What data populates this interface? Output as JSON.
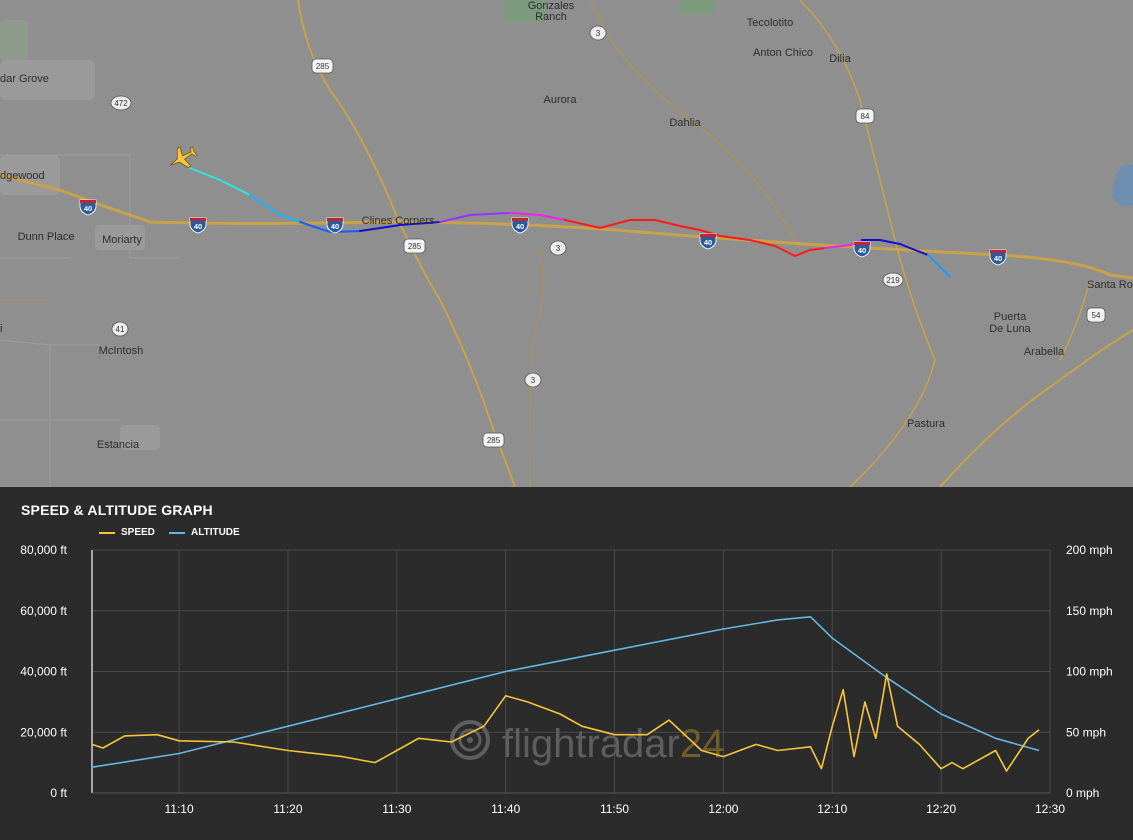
{
  "map": {
    "towns": [
      {
        "id": "gonzales-ranch",
        "lines": [
          "Gonzales",
          "Ranch"
        ]
      },
      {
        "id": "tecolotito",
        "lines": [
          "Tecolotito"
        ]
      },
      {
        "id": "anton-chico",
        "lines": [
          "Anton Chico"
        ]
      },
      {
        "id": "dilia",
        "lines": [
          "Dilia"
        ]
      },
      {
        "id": "cedar-grove",
        "lines": [
          "dar Grove"
        ]
      },
      {
        "id": "aurora",
        "lines": [
          "Aurora"
        ]
      },
      {
        "id": "dahlia",
        "lines": [
          "Dahlia"
        ]
      },
      {
        "id": "edgewood",
        "lines": [
          "dgewood"
        ]
      },
      {
        "id": "clines-corners",
        "lines": [
          "Clines Corners"
        ]
      },
      {
        "id": "dunn-place",
        "lines": [
          "Dunn Place"
        ]
      },
      {
        "id": "moriarty",
        "lines": [
          "Moriarty"
        ]
      },
      {
        "id": "santa-rosa",
        "lines": [
          "Santa Ro"
        ]
      },
      {
        "id": "puerta-de-luna",
        "lines": [
          "Puerta",
          "De Luna"
        ]
      },
      {
        "id": "arabella",
        "lines": [
          "Arabella"
        ]
      },
      {
        "id": "mcintosh",
        "lines": [
          "McIntosh"
        ]
      },
      {
        "id": "pastura",
        "lines": [
          "Pastura"
        ]
      },
      {
        "id": "estancia",
        "lines": [
          "Estancia"
        ]
      }
    ],
    "shields": {
      "us285_a": "285",
      "nm3_a": "3",
      "us84": "84",
      "nm472": "472",
      "i40_a": "40",
      "i40_b": "40",
      "i40_c": "40",
      "i40_d": "40",
      "i40_e": "40",
      "i40_f": "40",
      "i40_g": "40",
      "us285_b": "285",
      "nm3_b": "3",
      "nm219": "219",
      "us54": "54",
      "nm41": "41",
      "nm3_c": "3",
      "us285_c": "285"
    },
    "aircraft_icon": "airplane-icon",
    "track_colors": [
      "#2ee6e0",
      "#1ab2ff",
      "#1a5cff",
      "#1010cc",
      "#9933ff",
      "#ee22ee",
      "#ff1a1a",
      "#ff1a1a",
      "#ee22ee",
      "#1010cc",
      "#1a9cff"
    ]
  },
  "graph": {
    "title": "SPEED & ALTITUDE GRAPH",
    "legend": {
      "speed": "SPEED",
      "altitude": "ALTITUDE"
    },
    "watermark": {
      "text1": "flightradar",
      "text2": "24"
    },
    "colors": {
      "speed": "#f7c63a",
      "altitude": "#63b8e6",
      "grid": "#4a4a4a"
    }
  },
  "chart_data": {
    "type": "line",
    "title": "SPEED & ALTITUDE GRAPH",
    "legend": "top-left",
    "grid": true,
    "x_ticks": [
      "11:10",
      "11:20",
      "11:30",
      "11:40",
      "11:50",
      "12:00",
      "12:10",
      "12:20",
      "12:30"
    ],
    "x_range": [
      "11:02",
      "12:30"
    ],
    "y_left": {
      "ticks": [
        "0 ft",
        "20,000 ft",
        "40,000 ft",
        "60,000 ft",
        "80,000 ft"
      ],
      "range": [
        0,
        80000
      ]
    },
    "y_right": {
      "ticks": [
        "0 mph",
        "50 mph",
        "100 mph",
        "150 mph",
        "200 mph"
      ],
      "range": [
        0,
        200
      ]
    },
    "series": [
      {
        "name": "ALTITUDE",
        "axis": "left",
        "x": [
          "11:02",
          "11:10",
          "11:20",
          "11:30",
          "11:40",
          "11:50",
          "12:00",
          "12:05",
          "12:08",
          "12:10",
          "12:15",
          "12:20",
          "12:25",
          "12:29"
        ],
        "values": [
          8500,
          13000,
          22000,
          31000,
          40000,
          47000,
          54000,
          57000,
          58000,
          51000,
          38000,
          26000,
          18000,
          14000
        ]
      },
      {
        "name": "SPEED",
        "axis": "right",
        "x": [
          "11:02",
          "11:03",
          "11:05",
          "11:08",
          "11:10",
          "11:15",
          "11:20",
          "11:25",
          "11:28",
          "11:30",
          "11:32",
          "11:35",
          "11:38",
          "11:40",
          "11:42",
          "11:45",
          "11:47",
          "11:50",
          "11:53",
          "11:55",
          "11:58",
          "12:00",
          "12:03",
          "12:05",
          "12:08",
          "12:09",
          "12:10",
          "12:11",
          "12:12",
          "12:13",
          "12:14",
          "12:15",
          "12:16",
          "12:18",
          "12:20",
          "12:21",
          "12:22",
          "12:25",
          "12:26",
          "12:28",
          "12:29"
        ],
        "values": [
          40,
          37,
          47,
          48,
          43,
          42,
          35,
          30,
          25,
          35,
          45,
          42,
          55,
          80,
          75,
          65,
          55,
          48,
          48,
          60,
          35,
          30,
          40,
          35,
          38,
          20,
          55,
          85,
          30,
          75,
          45,
          98,
          55,
          40,
          20,
          25,
          20,
          35,
          18,
          45,
          52
        ]
      }
    ]
  }
}
